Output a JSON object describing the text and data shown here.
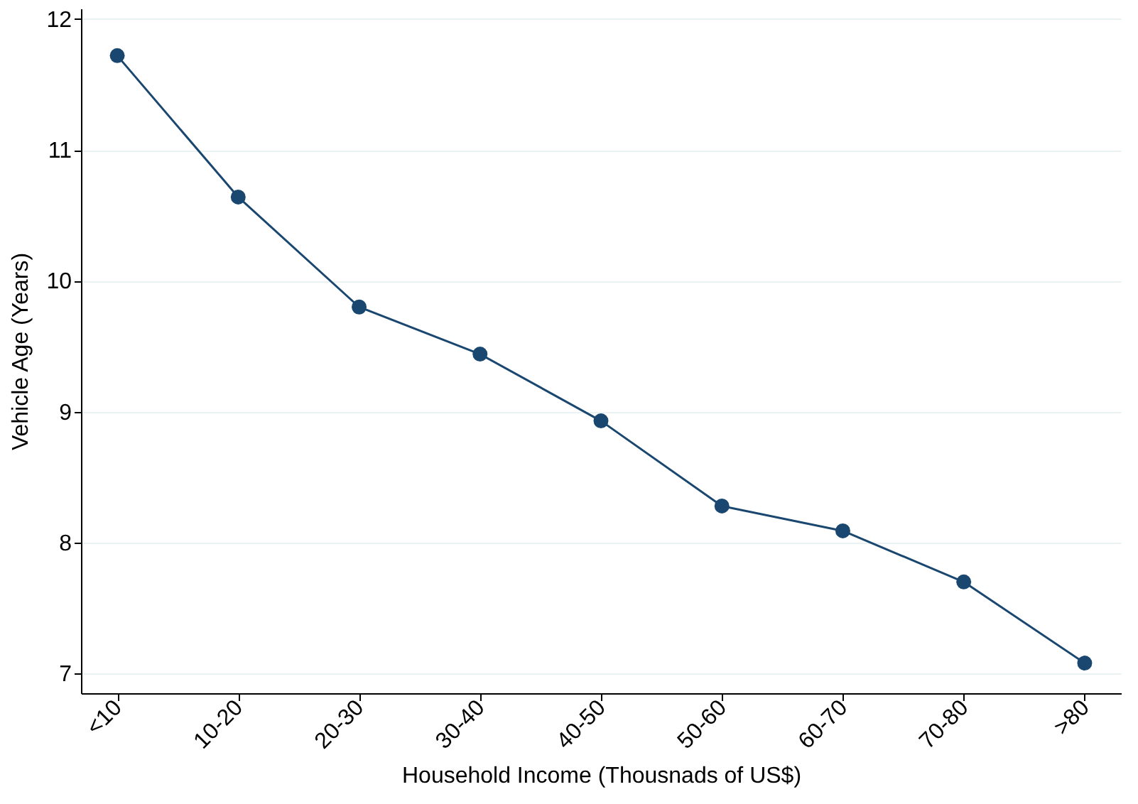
{
  "chart_data": {
    "type": "line",
    "xlabel": "Household Income (Thousnads of US$)",
    "ylabel": "Vehicle Age (Years)",
    "categories": [
      "<10",
      "10-20",
      "20-30",
      "30-40",
      "40-50",
      "50-60",
      "60-70",
      "70-80",
      ">80"
    ],
    "series": [
      {
        "color": "#1a476f",
        "values": [
          11.72,
          10.64,
          9.8,
          9.44,
          8.93,
          8.28,
          8.09,
          7.7,
          7.08
        ]
      }
    ],
    "ylim": [
      6.85,
      12.08
    ],
    "yticks": [
      7,
      8,
      9,
      10,
      11,
      12
    ],
    "grid": "y",
    "marker": "circle",
    "line_style": "solid"
  }
}
